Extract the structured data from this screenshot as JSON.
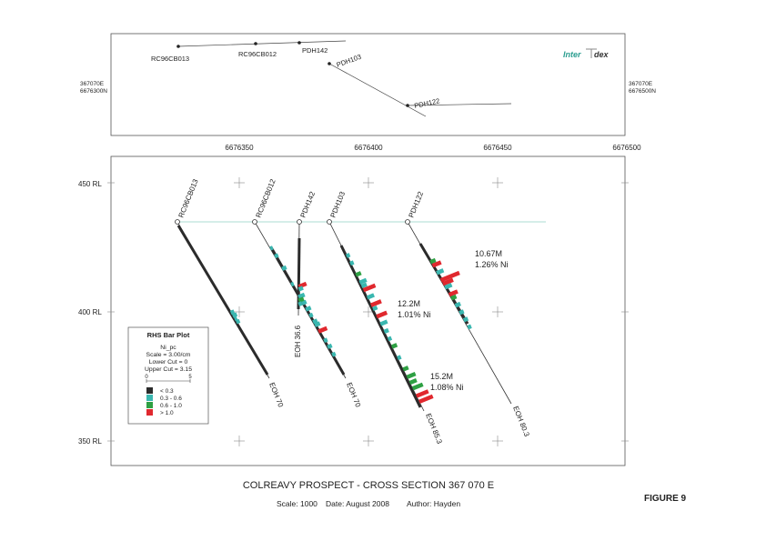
{
  "logo": {
    "text_a": "Inter",
    "text_b": "dex",
    "accent": "#2a9d8f"
  },
  "plan": {
    "left_coord": [
      "367070E",
      "6676300N"
    ],
    "right_coord": [
      "367070E",
      "6676500N"
    ],
    "holes": [
      {
        "id": "RC96CB013"
      },
      {
        "id": "RC96CB012"
      },
      {
        "id": "PDH142"
      },
      {
        "id": "PDH103"
      },
      {
        "id": "PDH122"
      }
    ]
  },
  "section": {
    "easting_ticks": [
      "6676350",
      "6676400",
      "6676450",
      "6676500"
    ],
    "rl_ticks": [
      "450 RL",
      "400 RL",
      "350 RL"
    ],
    "collar_rl": 435,
    "holes": [
      {
        "id": "RC96CB013",
        "eoh": "EOH 70"
      },
      {
        "id": "RC96CB012",
        "eoh": "EOH 70"
      },
      {
        "id": "PDH142",
        "eoh": "EOH 36.6"
      },
      {
        "id": "PDH103",
        "eoh": "EOH 85.3"
      },
      {
        "id": "PDH122",
        "eoh": "EOH 80.3"
      }
    ],
    "intercepts": [
      {
        "length": "10.67M",
        "grade": "1.26% Ni"
      },
      {
        "length": "12.2M",
        "grade": "1.01% Ni"
      },
      {
        "length": "15.2M",
        "grade": "1.08% Ni"
      }
    ]
  },
  "legend": {
    "title": "RHS Bar Plot",
    "lines": [
      "Ni_pc",
      "Scale = 3.00/cm",
      "Lower Cut = 0",
      "Upper Cut = 3.15"
    ],
    "scale_min": "0",
    "scale_max": "5",
    "classes": [
      {
        "label": "< 0.3",
        "color": "#2b2b2b"
      },
      {
        "label": "0.3 - 0.6",
        "color": "#3ab7b0"
      },
      {
        "label": "0.6 - 1.0",
        "color": "#2ea043"
      },
      {
        "label": "> 1.0",
        "color": "#e0282e"
      }
    ]
  },
  "footer": {
    "title": "COLREAVY PROSPECT - CROSS SECTION 367 070 E",
    "scale": "Scale: 1000",
    "date": "Date: August 2008",
    "author": "Author: Hayden",
    "figure": "FIGURE 9"
  }
}
